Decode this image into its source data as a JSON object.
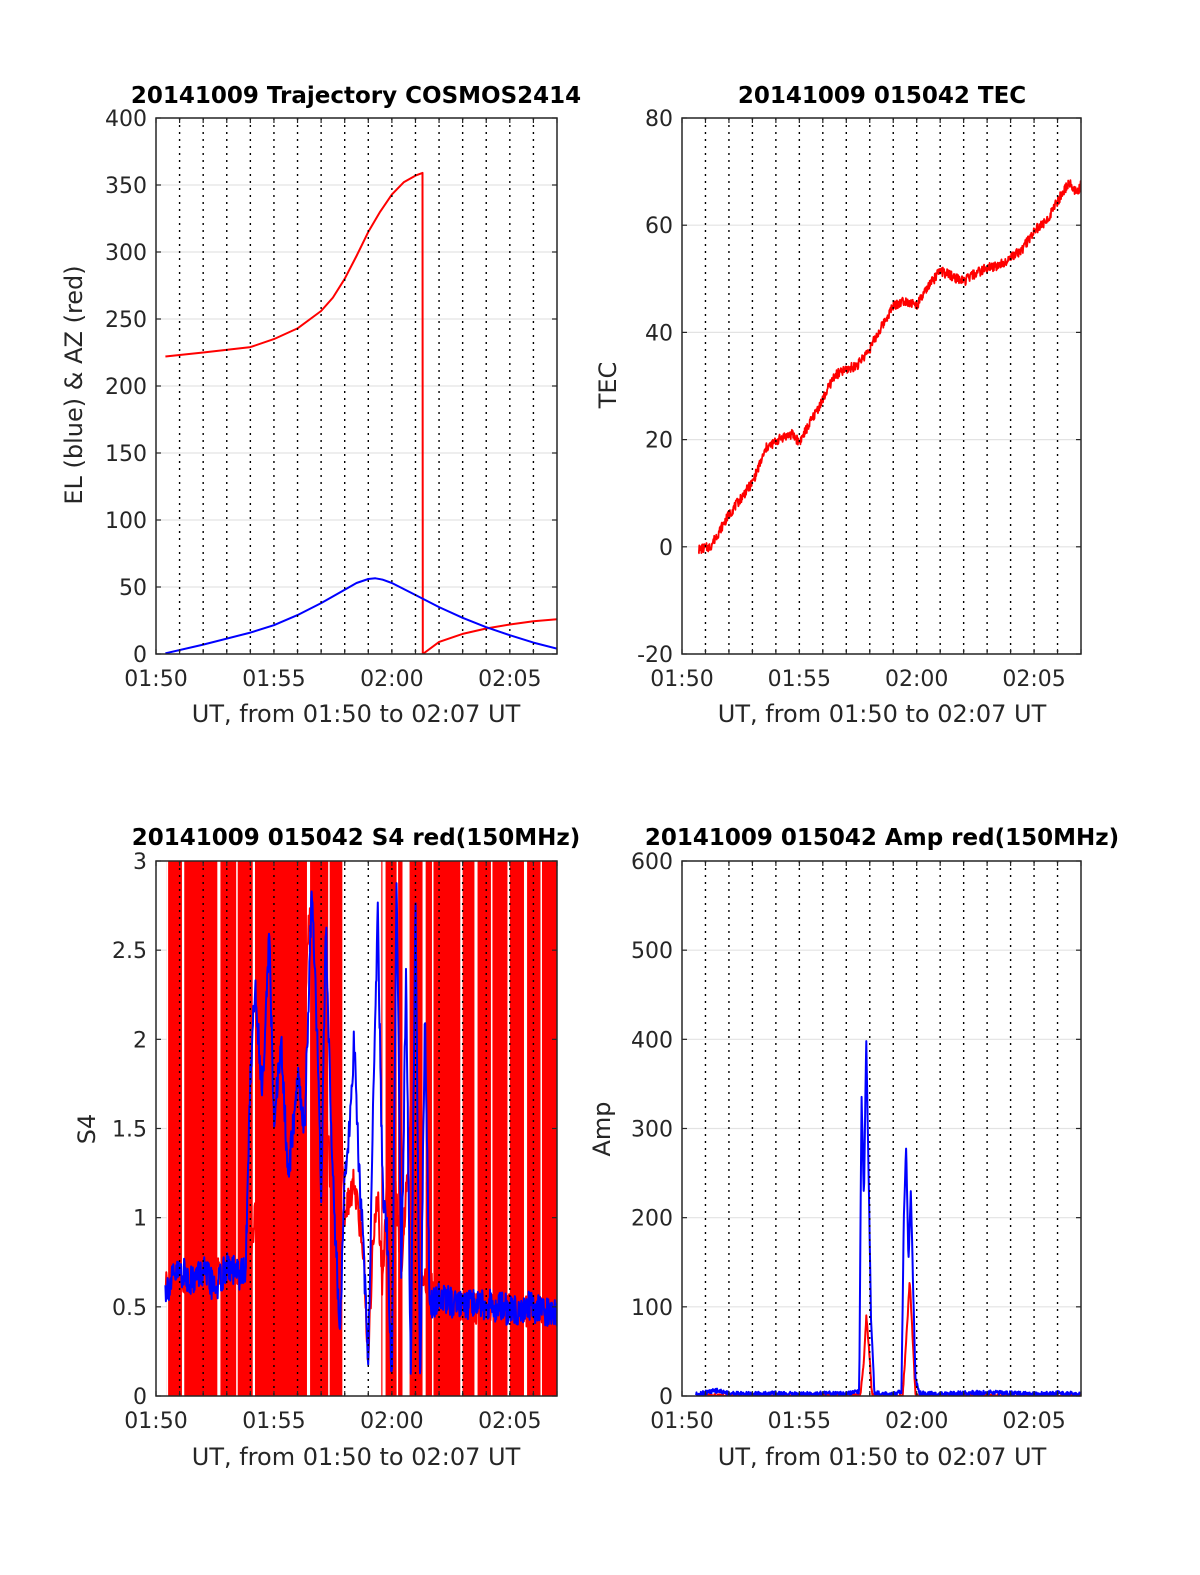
{
  "colors": {
    "el_series": "#0000ff",
    "az_series": "#ff0000",
    "grid_h": "#e3e3e3",
    "grid_v": "#000000",
    "axes": "#262626"
  },
  "chart_data": [
    {
      "type": "line",
      "title": "20141009 Trajectory COSMOS2414",
      "xlabel": "UT, from 01:50 to 02:07 UT",
      "ylabel": "EL (blue) & AZ (red)",
      "xlim": [
        "01:50",
        "02:07"
      ],
      "ylim": [
        0,
        400
      ],
      "xticks": [
        "01:50",
        "01:55",
        "02:00",
        "02:05"
      ],
      "yticks": [
        "0",
        "50",
        "100",
        "150",
        "200",
        "250",
        "300",
        "350",
        "400"
      ],
      "grid": "dotted vertical lines every minute; light horizontal gridlines",
      "series": [
        {
          "color": "#ff0000",
          "x_minutes_after_0150": [
            0.4,
            2,
            4,
            5,
            6,
            7,
            7.5,
            8,
            8.5,
            9,
            9.5,
            10,
            10.5,
            11,
            11.3,
            11.31,
            12,
            13,
            14,
            15,
            16,
            17
          ],
          "values": [
            222,
            225,
            229,
            235,
            243,
            256,
            266,
            280,
            297,
            315,
            330,
            343,
            352,
            357,
            359,
            0,
            9,
            15,
            19,
            22,
            24.5,
            26
          ]
        },
        {
          "color": "#0000ff",
          "x_minutes_after_0150": [
            0.4,
            2,
            4,
            5,
            6,
            7,
            8,
            8.5,
            9,
            9.3,
            9.6,
            10,
            11,
            12,
            13,
            14,
            15,
            16,
            17
          ],
          "values": [
            0.5,
            7,
            16,
            21.5,
            29,
            38,
            48,
            53,
            56,
            56.5,
            55.5,
            53,
            44,
            35,
            27,
            20,
            14,
            8.5,
            4
          ]
        }
      ]
    },
    {
      "type": "line",
      "title": "20141009 015042 TEC",
      "xlabel": "UT, from 01:50 to 02:07 UT",
      "ylabel": "TEC",
      "xlim": [
        "01:50",
        "02:07"
      ],
      "ylim": [
        -20,
        80
      ],
      "xticks": [
        "01:50",
        "01:55",
        "02:00",
        "02:05"
      ],
      "yticks": [
        "-20",
        "0",
        "20",
        "40",
        "60",
        "80"
      ],
      "series": [
        {
          "color": "#ff0000",
          "x_minutes_after_0150": [
            0.7,
            1.2,
            2,
            3,
            3.6,
            4.3,
            4.7,
            5,
            5.5,
            6,
            6.5,
            7,
            7.5,
            8,
            8.5,
            9,
            9.5,
            10,
            10.5,
            11,
            11.5,
            12,
            12.5,
            13,
            13.5,
            14,
            14.5,
            15,
            15.5,
            16,
            16.5,
            16.8,
            17
          ],
          "values": [
            -0.5,
            0,
            6,
            12,
            18.5,
            20.5,
            21,
            19.5,
            23.5,
            27.5,
            32,
            33,
            34,
            37,
            41,
            45,
            46,
            45,
            48.5,
            51.5,
            50.5,
            49.5,
            51,
            52,
            52.5,
            54,
            55.5,
            59,
            60.5,
            64.5,
            68,
            66,
            67.5
          ]
        }
      ]
    },
    {
      "type": "line",
      "title": "20141009 015042 S4 red(150MHz)",
      "xlabel": "UT, from 01:50 to 02:07 UT",
      "ylabel": "S4",
      "xlim": [
        "01:50",
        "02:07"
      ],
      "ylim": [
        0,
        3
      ],
      "xticks": [
        "01:50",
        "01:55",
        "02:00",
        "02:05"
      ],
      "yticks": [
        "0",
        "0.5",
        "1",
        "1.5",
        "2",
        "2.5",
        "3"
      ],
      "series": [
        {
          "color": "#ff0000",
          "x_minutes_after_0150": [
            0.4,
            1.5,
            2.9,
            3.2,
            3.5,
            4,
            4.6,
            5,
            5.6,
            6,
            6.5,
            7,
            7.4,
            7.6,
            7.8,
            8,
            8.4,
            8.8,
            9,
            9.2,
            9.4,
            9.6,
            9.8,
            10,
            10.4,
            10.9,
            11.2,
            11.5,
            12,
            13,
            14,
            15,
            16,
            17
          ],
          "values": [
            0.62,
            0.68,
            0.72,
            0.65,
            0.68,
            0.72,
            1.6,
            2.3,
            1.7,
            1.3,
            2.7,
            2.1,
            1.2,
            0.5,
            1.8,
            1.0,
            1.2,
            0.8,
            0.2,
            0.9,
            1.1,
            0.6,
            1.3,
            1.5,
            0.7,
            1.8,
            0.6,
            0.65,
            0.55,
            0.5,
            0.48,
            0.5,
            0.47,
            0.46
          ]
        },
        {
          "color": "#0000ff",
          "x_minutes_after_0150": [
            0.4,
            1,
            1.5,
            2,
            2.5,
            3,
            3.5,
            3.8,
            4,
            4.2,
            4.5,
            4.8,
            5,
            5.3,
            5.6,
            6,
            6.3,
            6.6,
            6.9,
            7,
            7.2,
            7.4,
            7.6,
            7.8,
            8,
            8.2,
            8.4,
            8.6,
            8.8,
            9,
            9.2,
            9.4,
            9.6,
            9.8,
            10,
            10.2,
            10.4,
            10.6,
            10.8,
            11,
            11.2,
            11.4,
            11.6,
            12,
            13,
            14,
            15,
            16,
            17
          ],
          "values": [
            0.6,
            0.7,
            0.65,
            0.7,
            0.6,
            0.72,
            0.68,
            0.7,
            1.8,
            2.3,
            1.7,
            2.6,
            1.5,
            2.0,
            1.2,
            1.8,
            1.5,
            2.8,
            1.8,
            1.0,
            2.7,
            1.6,
            0.9,
            0.35,
            1.2,
            1.5,
            2.0,
            1.3,
            0.8,
            0.2,
            1.6,
            2.7,
            1.2,
            0.9,
            0.1,
            3.0,
            0.6,
            2.4,
            0.1,
            2.8,
            0.0,
            2.2,
            0.5,
            0.55,
            0.5,
            0.52,
            0.48,
            0.5,
            0.47
          ]
        }
      ]
    },
    {
      "type": "line",
      "title": "20141009 015042 Amp red(150MHz)",
      "xlabel": "UT, from 01:50 to 02:07 UT",
      "ylabel": "Amp",
      "xlim": [
        "01:50",
        "02:07"
      ],
      "ylim": [
        0,
        600
      ],
      "xticks": [
        "01:50",
        "01:55",
        "02:00",
        "02:05"
      ],
      "yticks": [
        "0",
        "100",
        "200",
        "300",
        "400",
        "500",
        "600"
      ],
      "series": [
        {
          "color": "#ff0000",
          "x_minutes_after_0150": [
            0.6,
            7.6,
            7.75,
            7.85,
            7.95,
            8.1,
            9.4,
            9.55,
            9.7,
            9.8,
            9.95,
            17
          ],
          "values": [
            0,
            0,
            40,
            90,
            60,
            0,
            0,
            60,
            130,
            80,
            0,
            0
          ]
        },
        {
          "color": "#0000ff",
          "x_minutes_after_0150": [
            0.6,
            1.5,
            2,
            3,
            4,
            5,
            6,
            7,
            7.55,
            7.65,
            7.75,
            7.85,
            7.95,
            8.05,
            8.2,
            9.0,
            9.35,
            9.45,
            9.55,
            9.65,
            9.75,
            9.85,
            9.95,
            10.1,
            11,
            12,
            13,
            14,
            15,
            16,
            17
          ],
          "values": [
            2,
            6,
            3,
            2,
            3,
            2,
            3,
            2,
            5,
            340,
            220,
            400,
            250,
            90,
            3,
            2,
            5,
            200,
            280,
            150,
            230,
            120,
            20,
            3,
            2,
            3,
            4,
            3,
            2,
            3,
            2
          ]
        }
      ]
    }
  ]
}
